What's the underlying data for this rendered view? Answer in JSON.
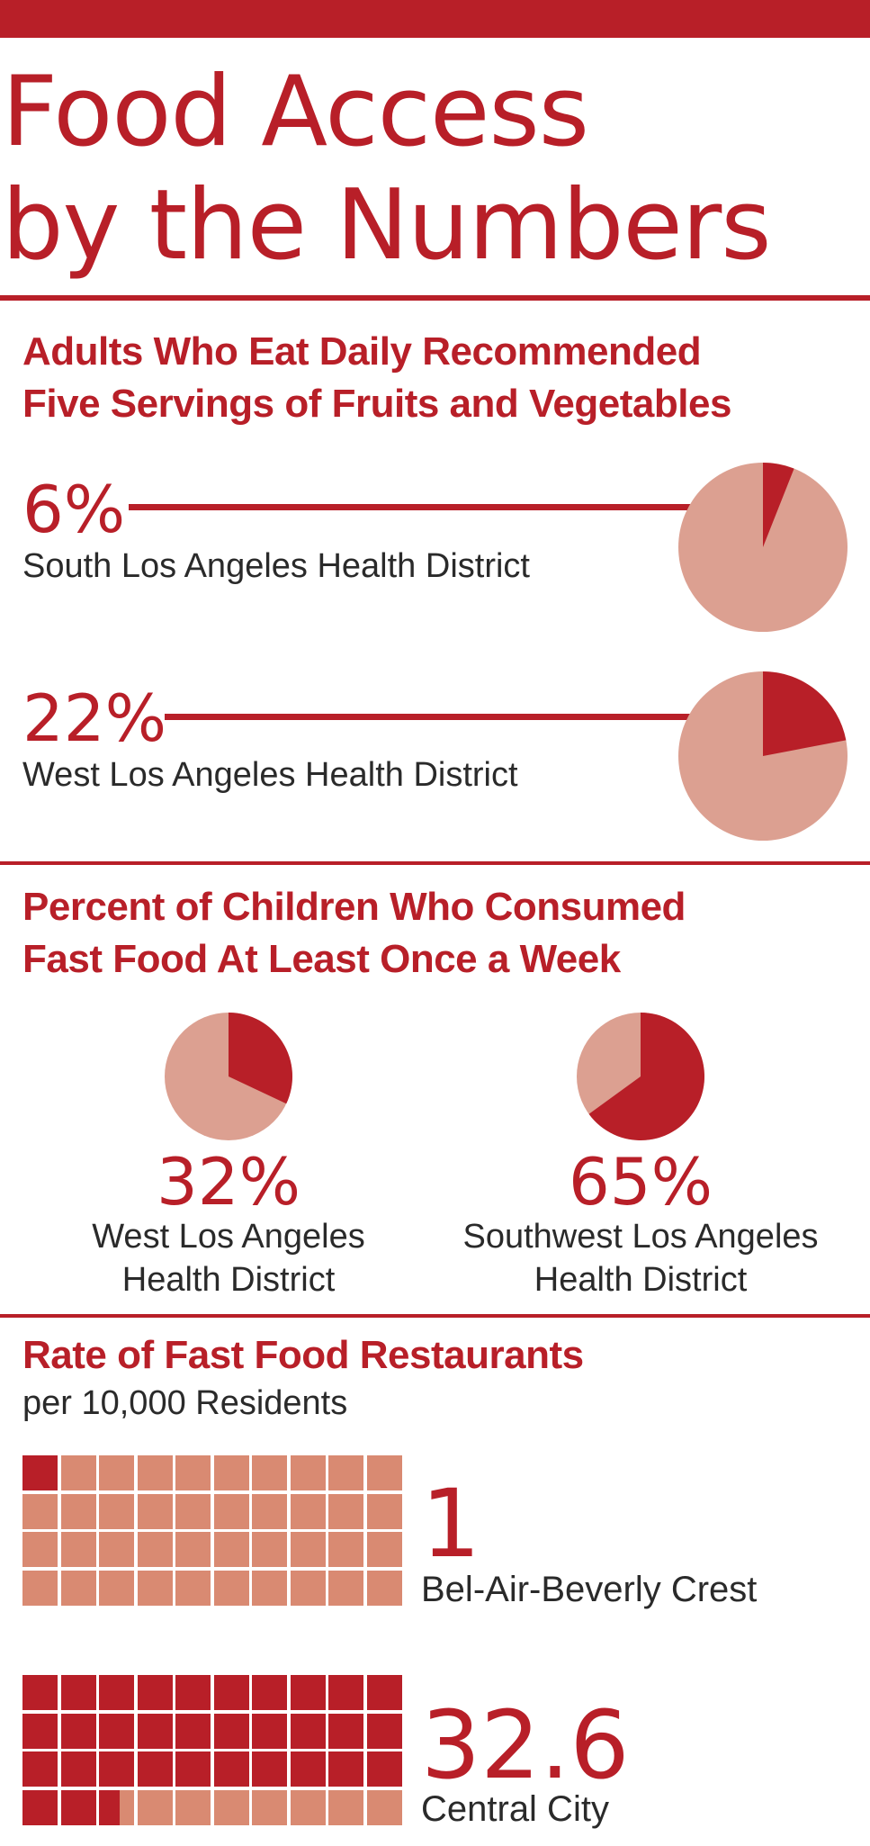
{
  "title": {
    "line1": "Food Access",
    "line2": "by the Numbers"
  },
  "colors": {
    "accent": "#b81f28",
    "pie_light": "#dca091",
    "waffle_light": "#d98a72",
    "text": "#2a2a2a"
  },
  "chart_data": [
    {
      "type": "pie",
      "title": "Adults Who Eat Daily Recommended Five Servings of Fruits and Vegetables",
      "title_lines": [
        "Adults Who Eat Daily Recommended",
        "Five Servings of Fruits and Vegetables"
      ],
      "items": [
        {
          "label": "South Los Angeles Health District",
          "value": 6,
          "display": "6%"
        },
        {
          "label": "West Los Angeles Health District",
          "value": 22,
          "display": "22%"
        }
      ]
    },
    {
      "type": "pie",
      "title": "Percent of Children Who Consumed Fast Food At Least Once a Week",
      "title_lines": [
        "Percent of Children Who Consumed",
        "Fast Food At Least Once a Week"
      ],
      "items": [
        {
          "label_lines": [
            "West Los Angeles",
            "Health District"
          ],
          "value": 32,
          "display": "32%"
        },
        {
          "label_lines": [
            "Southwest Los Angeles",
            "Health District"
          ],
          "value": 65,
          "display": "65%"
        }
      ]
    },
    {
      "type": "waffle",
      "title": "Rate of Fast Food Restaurants",
      "subtitle": "per 10,000 Residents",
      "grid": {
        "columns": 10,
        "rows": 4,
        "total": 40
      },
      "items": [
        {
          "label": "Bel-Air-Beverly Crest",
          "value": 1,
          "display": "1"
        },
        {
          "label": "Central City",
          "value": 32.6,
          "display": "32.6"
        }
      ]
    }
  ]
}
